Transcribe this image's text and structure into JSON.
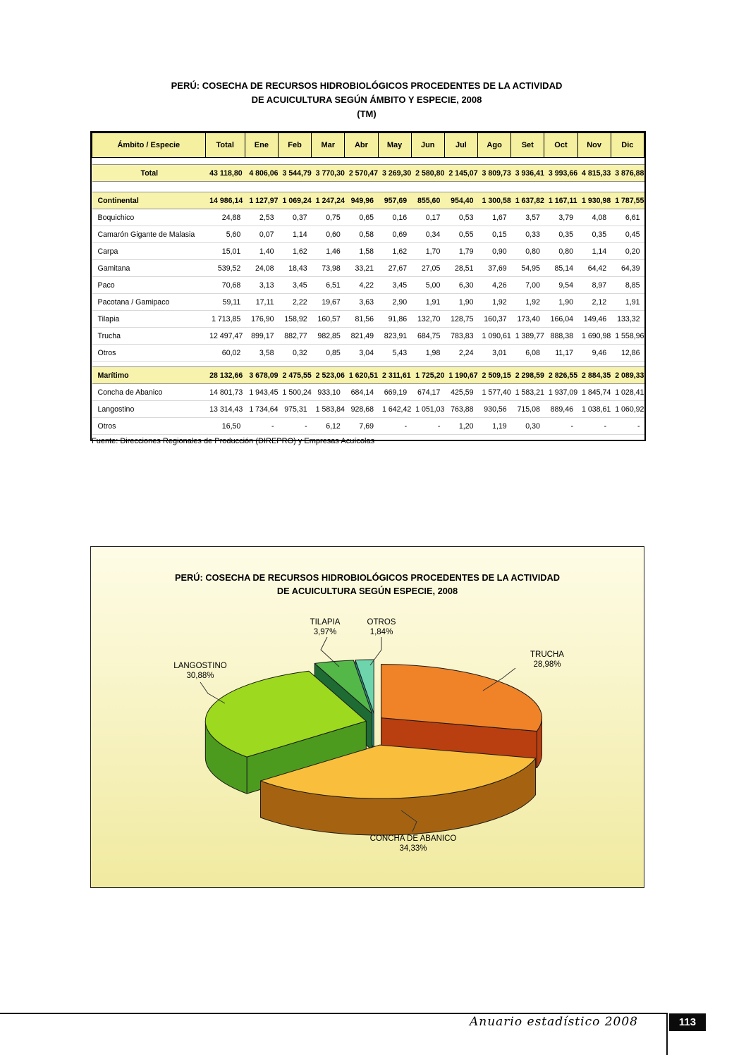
{
  "doc": {
    "title_line1": "PERÚ: COSECHA DE RECURSOS HIDROBIOLÓGICOS PROCEDENTES DE LA ACTIVIDAD",
    "title_line2": "DE ACUICULTURA SEGÚN ÁMBITO Y ESPECIE, 2008",
    "title_unit": "(TM)",
    "source_note": "Fuente: Direcciones Regionales de Producción (DIREPRO) y Empresas Acuícolas",
    "footer": {
      "yearbook_label": "Anuario estadístico 2008",
      "page_number": "113"
    }
  },
  "table": {
    "columns": [
      "Ámbito / Especie",
      "Total",
      "Ene",
      "Feb",
      "Mar",
      "Abr",
      "May",
      "Jun",
      "Jul",
      "Ago",
      "Set",
      "Oct",
      "Nov",
      "Dic"
    ],
    "rows": [
      {
        "label": "Total",
        "type": "total",
        "values": [
          "43 118,80",
          "4 806,06",
          "3 544,79",
          "3 770,30",
          "2 570,47",
          "3 269,30",
          "2 580,80",
          "2 145,07",
          "3 809,73",
          "3 936,41",
          "3 993,66",
          "4 815,33",
          "3 876,88"
        ]
      },
      {
        "label": "Continental",
        "type": "section",
        "values": [
          "14 986,14",
          "1 127,97",
          "1 069,24",
          "1 247,24",
          "949,96",
          "957,69",
          "855,60",
          "954,40",
          "1 300,58",
          "1 637,82",
          "1 167,11",
          "1 930,98",
          "1 787,55"
        ]
      },
      {
        "label": "Boquichico",
        "type": "data",
        "values": [
          "24,88",
          "2,53",
          "0,37",
          "0,75",
          "0,65",
          "0,16",
          "0,17",
          "0,53",
          "1,67",
          "3,57",
          "3,79",
          "4,08",
          "6,61"
        ]
      },
      {
        "label": "Camarón Gigante de Malasia",
        "type": "data",
        "values": [
          "5,60",
          "0,07",
          "1,14",
          "0,60",
          "0,58",
          "0,69",
          "0,34",
          "0,55",
          "0,15",
          "0,33",
          "0,35",
          "0,35",
          "0,45"
        ]
      },
      {
        "label": "Carpa",
        "type": "data",
        "values": [
          "15,01",
          "1,40",
          "1,62",
          "1,46",
          "1,58",
          "1,62",
          "1,70",
          "1,79",
          "0,90",
          "0,80",
          "0,80",
          "1,14",
          "0,20"
        ]
      },
      {
        "label": "Gamitana",
        "type": "data",
        "values": [
          "539,52",
          "24,08",
          "18,43",
          "73,98",
          "33,21",
          "27,67",
          "27,05",
          "28,51",
          "37,69",
          "54,95",
          "85,14",
          "64,42",
          "64,39"
        ]
      },
      {
        "label": "Paco",
        "type": "data",
        "values": [
          "70,68",
          "3,13",
          "3,45",
          "6,51",
          "4,22",
          "3,45",
          "5,00",
          "6,30",
          "4,26",
          "7,00",
          "9,54",
          "8,97",
          "8,85"
        ]
      },
      {
        "label": "Pacotana / Gamipaco",
        "type": "data",
        "values": [
          "59,11",
          "17,11",
          "2,22",
          "19,67",
          "3,63",
          "2,90",
          "1,91",
          "1,90",
          "1,92",
          "1,92",
          "1,90",
          "2,12",
          "1,91"
        ]
      },
      {
        "label": "Tilapia",
        "type": "data",
        "values": [
          "1 713,85",
          "176,90",
          "158,92",
          "160,57",
          "81,56",
          "91,86",
          "132,70",
          "128,75",
          "160,37",
          "173,40",
          "166,04",
          "149,46",
          "133,32"
        ]
      },
      {
        "label": "Trucha",
        "type": "data",
        "values": [
          "12 497,47",
          "899,17",
          "882,77",
          "982,85",
          "821,49",
          "823,91",
          "684,75",
          "783,83",
          "1 090,61",
          "1 389,77",
          "888,38",
          "1 690,98",
          "1 558,96"
        ]
      },
      {
        "label": "Otros",
        "type": "data",
        "values": [
          "60,02",
          "3,58",
          "0,32",
          "0,85",
          "3,04",
          "5,43",
          "1,98",
          "2,24",
          "3,01",
          "6,08",
          "11,17",
          "9,46",
          "12,86"
        ]
      },
      {
        "label": "Marítimo",
        "type": "section",
        "values": [
          "28 132,66",
          "3 678,09",
          "2 475,55",
          "2 523,06",
          "1 620,51",
          "2 311,61",
          "1 725,20",
          "1 190,67",
          "2 509,15",
          "2 298,59",
          "2 826,55",
          "2 884,35",
          "2 089,33"
        ]
      },
      {
        "label": "Concha de Abanico",
        "type": "data",
        "values": [
          "14 801,73",
          "1 943,45",
          "1 500,24",
          "933,10",
          "684,14",
          "669,19",
          "674,17",
          "425,59",
          "1 577,40",
          "1 583,21",
          "1 937,09",
          "1 845,74",
          "1 028,41"
        ]
      },
      {
        "label": "Langostino",
        "type": "data",
        "values": [
          "13 314,43",
          "1 734,64",
          "975,31",
          "1 583,84",
          "928,68",
          "1 642,42",
          "1 051,03",
          "763,88",
          "930,56",
          "715,08",
          "889,46",
          "1 038,61",
          "1 060,92"
        ]
      },
      {
        "label": "Otros",
        "type": "data",
        "values": [
          "16,50",
          "-",
          "-",
          "6,12",
          "7,69",
          "-",
          "-",
          "1,20",
          "1,19",
          "0,30",
          "-",
          "-",
          "-"
        ]
      }
    ]
  },
  "chart": {
    "title_line1": "PERÚ: COSECHA DE RECURSOS HIDROBIOLÓGICOS PROCEDENTES DE LA ACTIVIDAD",
    "title_line2": "DE ACUICULTURA SEGÚN ESPECIE, 2008"
  },
  "chart_data": {
    "type": "pie",
    "style": "3d-exploded",
    "title": "PERÚ: COSECHA DE RECURSOS HIDROBIOLÓGICOS PROCEDENTES DE LA ACTIVIDAD DE ACUICULTURA SEGÚN ESPECIE, 2008",
    "order_clockwise_from_top": [
      "TRUCHA",
      "CONCHA DE ABANICO",
      "LANGOSTINO",
      "TILAPIA",
      "OTROS"
    ],
    "slices": [
      {
        "label": "TRUCHA",
        "pct": 28.98,
        "pct_label": "28,98%",
        "top_color": "#F08228",
        "side_color": "#B93E10"
      },
      {
        "label": "CONCHA DE ABANICO",
        "pct": 34.33,
        "pct_label": "34,33%",
        "top_color": "#F9BE3B",
        "side_color": "#A56312"
      },
      {
        "label": "LANGOSTINO",
        "pct": 30.88,
        "pct_label": "30,88%",
        "top_color": "#9CD91F",
        "side_color": "#4C9B1F"
      },
      {
        "label": "TILAPIA",
        "pct": 3.97,
        "pct_label": "3,97%",
        "top_color": "#53B848",
        "side_color": "#1E6B33"
      },
      {
        "label": "OTROS",
        "pct": 1.84,
        "pct_label": "1,84%",
        "top_color": "#6ED4AC",
        "side_color": "#2B8F7F"
      }
    ]
  }
}
